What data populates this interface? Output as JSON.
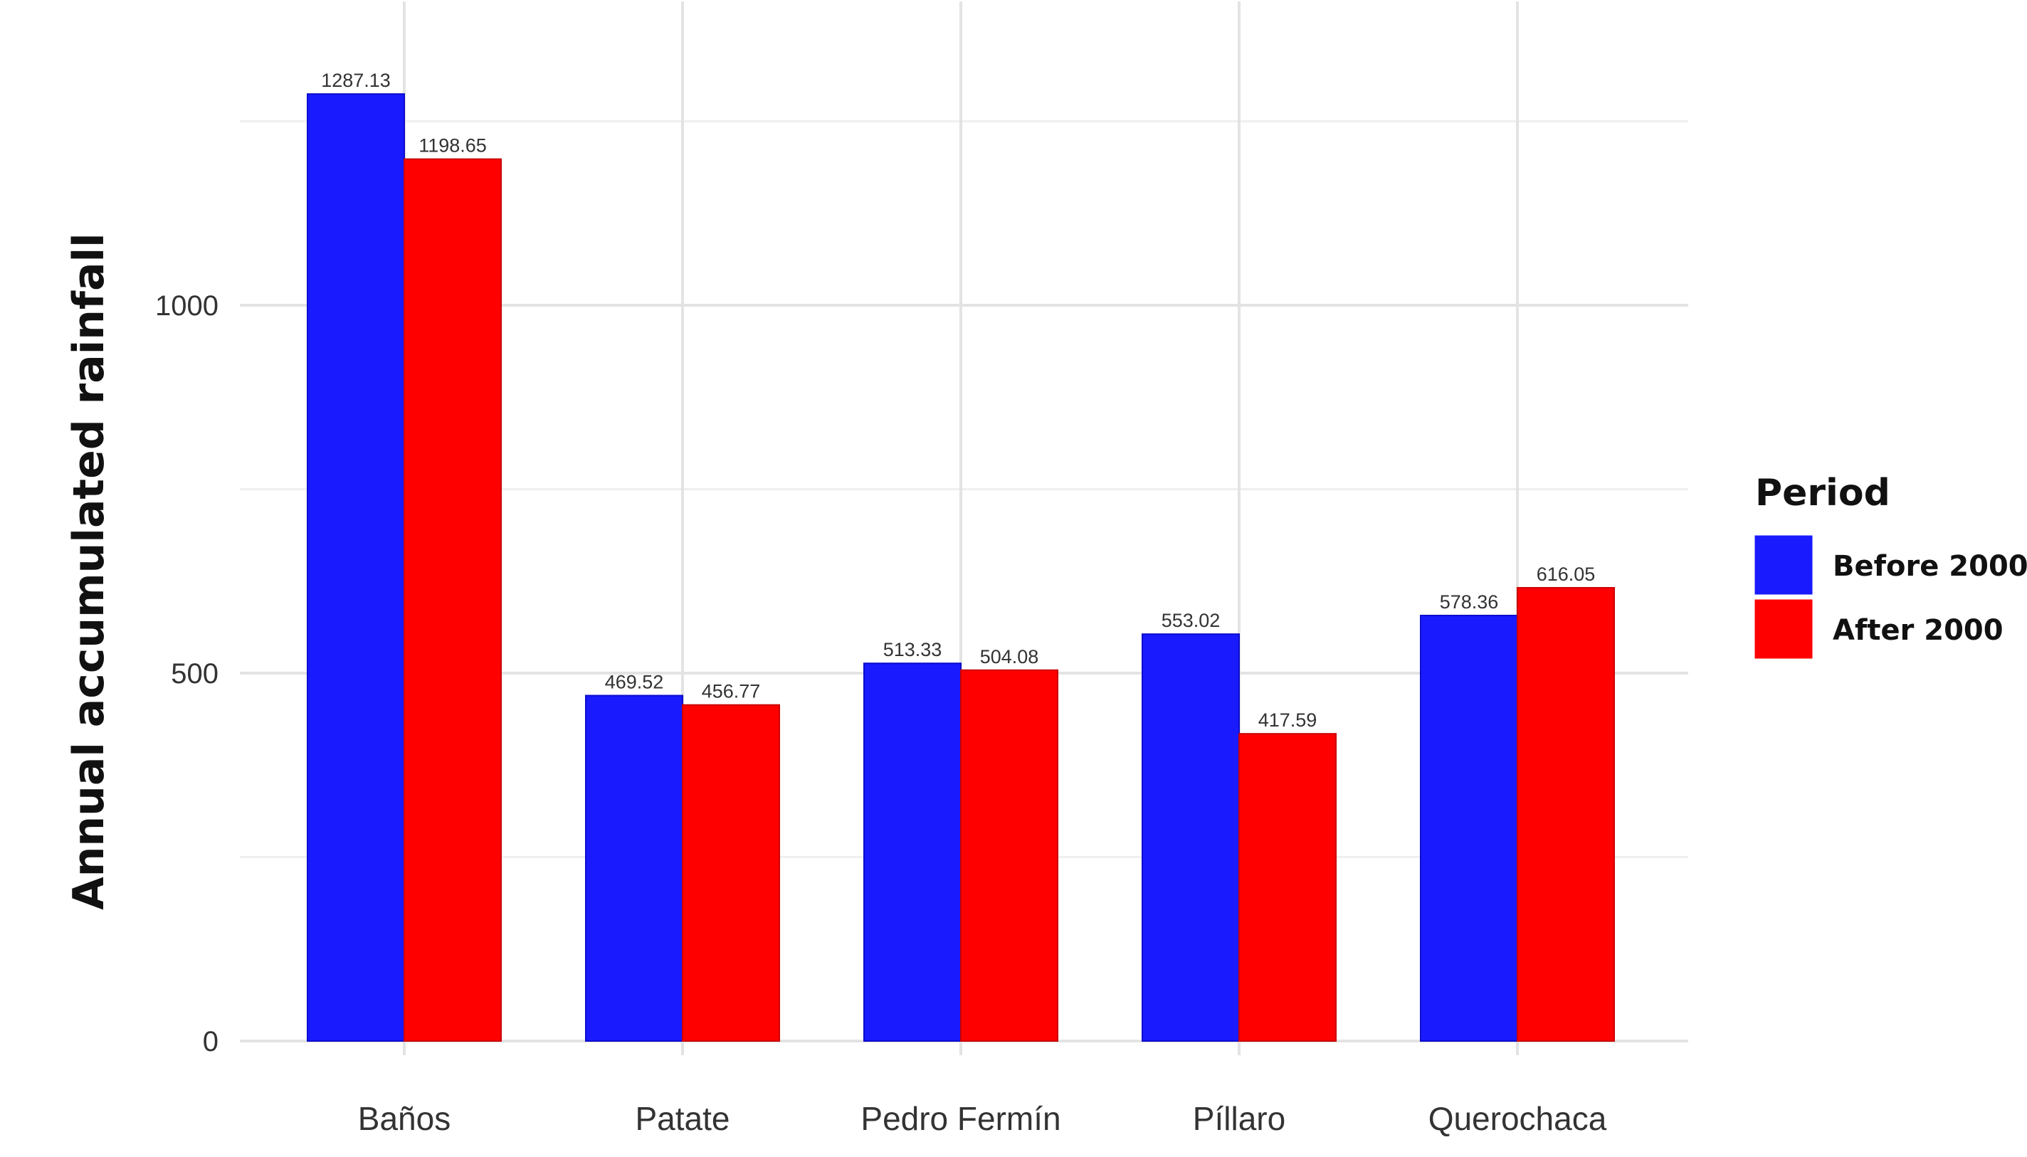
{
  "chart_data": {
    "type": "bar",
    "title": "",
    "xlabel": "",
    "ylabel": "Annual accumulated rainfall",
    "categories": [
      "Baños",
      "Patate",
      "Pedro Fermín",
      "Píllaro",
      "Querochaca"
    ],
    "series": [
      {
        "name": "Before 2000",
        "color": "#1a1aff",
        "values": [
          1287.13,
          469.52,
          513.33,
          553.02,
          578.36
        ],
        "labels": [
          "1287.13",
          "469.52",
          "513.33",
          "553.02",
          "578.36"
        ]
      },
      {
        "name": "After 2000",
        "color": "#ff0000",
        "values": [
          1198.65,
          456.77,
          504.08,
          417.59,
          616.05
        ],
        "labels": [
          "1198.65",
          "456.77",
          "504.08",
          "417.59",
          "616.05"
        ]
      }
    ],
    "ylim": [
      0,
      1350
    ],
    "yticks": [
      0,
      500,
      1000
    ],
    "ytick_labels": [
      "0",
      "500",
      "1000"
    ],
    "grid": true,
    "legend": {
      "title": "Period",
      "position": "right"
    }
  }
}
